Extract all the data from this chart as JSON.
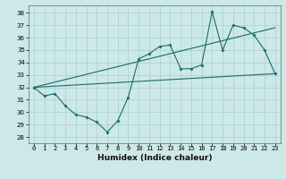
{
  "xlabel": "Humidex (Indice chaleur)",
  "ylabel": "",
  "background_color": "#cce8e8",
  "grid_color": "#aacfcf",
  "line_color": "#1a6b6b",
  "xlim": [
    -0.5,
    23.5
  ],
  "ylim": [
    27.5,
    38.6
  ],
  "yticks": [
    28,
    29,
    30,
    31,
    32,
    33,
    34,
    35,
    36,
    37,
    38
  ],
  "xticks": [
    0,
    1,
    2,
    3,
    4,
    5,
    6,
    7,
    8,
    9,
    10,
    11,
    12,
    13,
    14,
    15,
    16,
    17,
    18,
    19,
    20,
    21,
    22,
    23
  ],
  "series1_x": [
    0,
    1,
    2,
    3,
    4,
    5,
    6,
    7,
    8,
    9,
    10,
    11,
    12,
    13,
    14,
    15,
    16,
    17,
    18,
    19,
    20,
    21,
    22,
    23
  ],
  "series1_y": [
    32.0,
    31.3,
    31.5,
    30.5,
    29.8,
    29.6,
    29.2,
    28.4,
    29.3,
    31.2,
    34.3,
    34.7,
    35.3,
    35.4,
    33.5,
    33.5,
    33.8,
    38.1,
    35.0,
    37.0,
    36.8,
    36.2,
    35.0,
    33.1
  ],
  "series2_x": [
    0,
    23
  ],
  "series2_y": [
    32.0,
    33.1
  ],
  "series3_x": [
    0,
    23
  ],
  "series3_y": [
    32.0,
    36.8
  ],
  "axis_fontsize": 5.5,
  "tick_fontsize": 5.0,
  "xlabel_fontsize": 6.5
}
